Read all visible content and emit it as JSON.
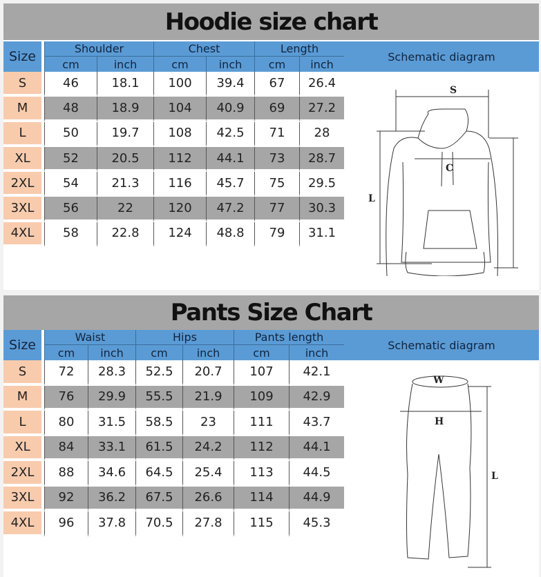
{
  "hoodie": {
    "title": "Hoodie size chart",
    "size_label": "Size",
    "schematic_label": "Schematic diagram",
    "groups": [
      "Shoulder",
      "Chest",
      "Length"
    ],
    "units": [
      "cm",
      "inch",
      "cm",
      "inch",
      "cm",
      "inch"
    ],
    "rows": [
      [
        "S",
        "46",
        "18.1",
        "100",
        "39.4",
        "67",
        "26.4"
      ],
      [
        "M",
        "48",
        "18.9",
        "104",
        "40.9",
        "69",
        "27.2"
      ],
      [
        "L",
        "50",
        "19.7",
        "108",
        "42.5",
        "71",
        "28"
      ],
      [
        "XL",
        "52",
        "20.5",
        "112",
        "44.1",
        "73",
        "28.7"
      ],
      [
        "2XL",
        "54",
        "21.3",
        "116",
        "45.7",
        "75",
        "29.5"
      ],
      [
        "3XL",
        "56",
        "22",
        "120",
        "47.2",
        "77",
        "30.3"
      ],
      [
        "4XL",
        "58",
        "22.8",
        "124",
        "48.8",
        "79",
        "31.1"
      ]
    ],
    "diagram_labels": {
      "s": "S",
      "c": "C",
      "l": "L"
    }
  },
  "pants": {
    "title": "Pants Size Chart",
    "size_label": "Size",
    "schematic_label": "Schematic diagram",
    "groups": [
      "Waist",
      "Hips",
      "Pants length"
    ],
    "units": [
      "cm",
      "inch",
      "cm",
      "inch",
      "cm",
      "inch"
    ],
    "rows": [
      [
        "S",
        "72",
        "28.3",
        "52.5",
        "20.7",
        "107",
        "42.1"
      ],
      [
        "M",
        "76",
        "29.9",
        "55.5",
        "21.9",
        "109",
        "42.9"
      ],
      [
        "L",
        "80",
        "31.5",
        "58.5",
        "23",
        "111",
        "43.7"
      ],
      [
        "XL",
        "84",
        "33.1",
        "61.5",
        "24.2",
        "112",
        "44.1"
      ],
      [
        "2XL",
        "88",
        "34.6",
        "64.5",
        "25.4",
        "113",
        "44.5"
      ],
      [
        "3XL",
        "92",
        "36.2",
        "67.5",
        "26.6",
        "114",
        "44.9"
      ],
      [
        "4XL",
        "96",
        "37.8",
        "70.5",
        "27.8",
        "115",
        "45.3"
      ]
    ],
    "diagram_labels": {
      "w": "W",
      "h": "H",
      "l": "L"
    }
  },
  "colors": {
    "header_blue": "#5b9bd5",
    "title_gray": "#a6a6a6",
    "size_peach": "#f8cbad",
    "row_gray": "#a6a6a6"
  }
}
